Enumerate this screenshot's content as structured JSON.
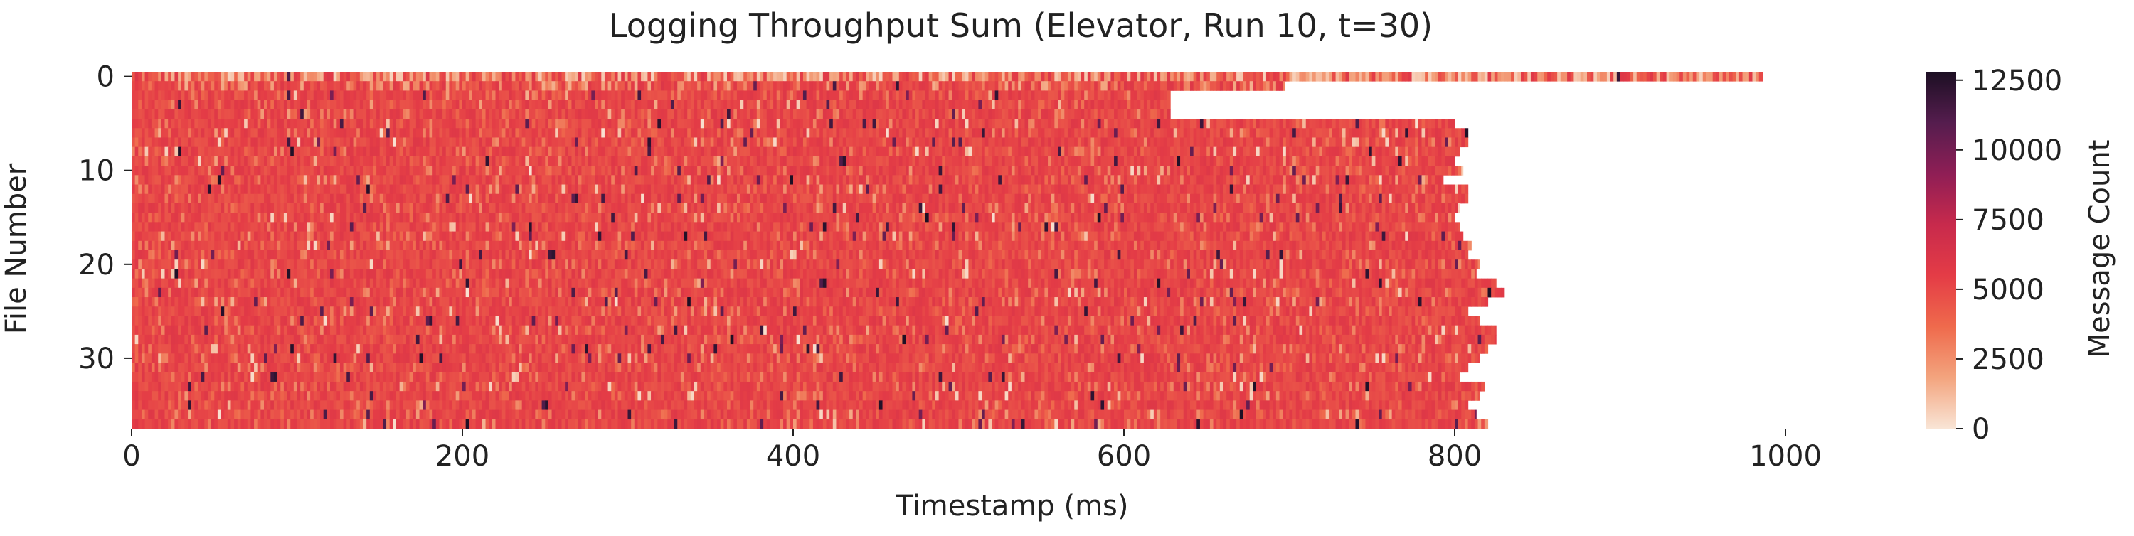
{
  "chart_data": {
    "type": "heatmap",
    "title": "Logging Throughput Sum (Elevator, Run 10, t=30)",
    "xlabel": "Timestamp (ms)",
    "ylabel": "File Number",
    "colorbar_label": "Message Count",
    "xlim": [
      0,
      1000
    ],
    "ylim": [
      0,
      38
    ],
    "x_ticks": [
      0,
      200,
      400,
      600,
      800,
      1000
    ],
    "y_ticks": [
      0,
      10,
      20,
      30
    ],
    "colorbar_ticks": [
      0,
      2500,
      5000,
      7500,
      10000,
      12500
    ],
    "colorbar_range": [
      0,
      12800
    ],
    "colorscale": "rocket_r",
    "colorscale_stops": [
      "#f9e5d6",
      "#f3a47e",
      "#ef6a4c",
      "#e43c46",
      "#c82a4c",
      "#8f1e55",
      "#551d4e",
      "#1c0f23"
    ],
    "grid": false,
    "rows": 38,
    "row_extents_ms": [
      986,
      697,
      628,
      628,
      628,
      800,
      808,
      808,
      803,
      800,
      805,
      793,
      808,
      808,
      803,
      800,
      803,
      805,
      810,
      808,
      815,
      813,
      825,
      830,
      820,
      808,
      815,
      825,
      825,
      820,
      815,
      808,
      803,
      818,
      815,
      808,
      813,
      820
    ],
    "typical_cell_value": 5000,
    "notes_visible": "rows 0-1 lighter (~1000-3000) in long spans; occasional dark cells up to ~12500"
  }
}
